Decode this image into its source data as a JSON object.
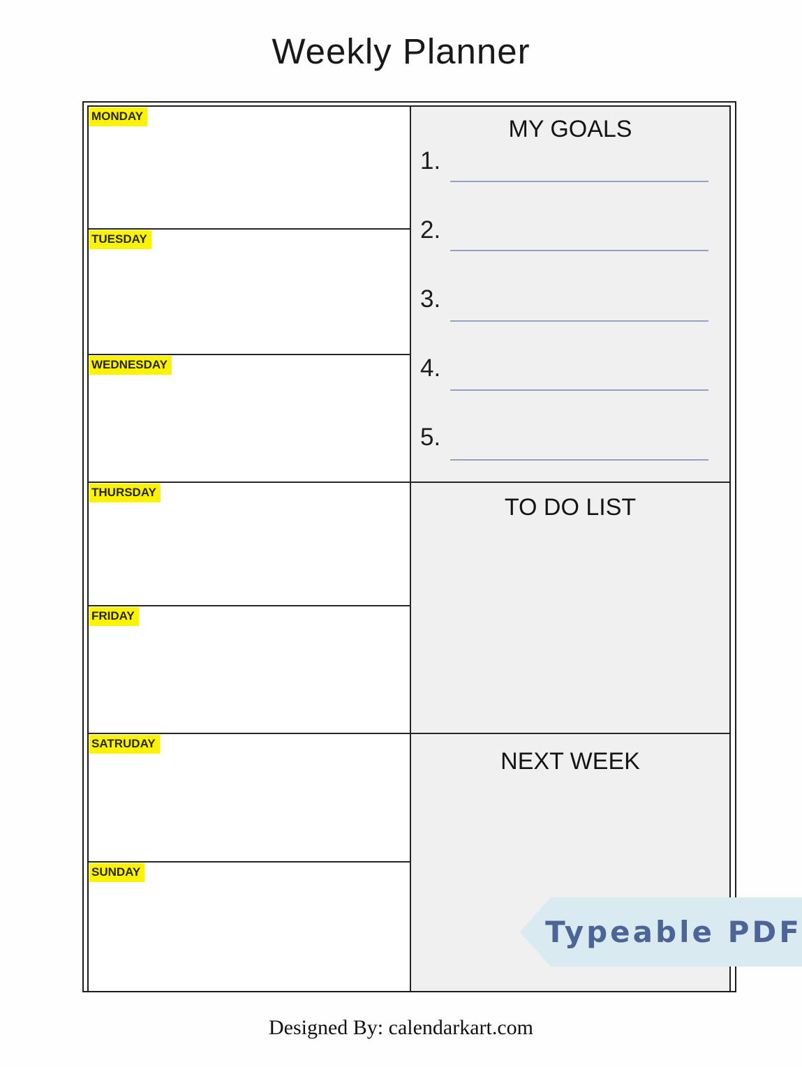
{
  "page": {
    "title": "Weekly Planner",
    "footer": "Designed By: calendarkart.com"
  },
  "planner": {
    "days": [
      {
        "label": "MONDAY"
      },
      {
        "label": "TUESDAY"
      },
      {
        "label": "WEDNESDAY"
      },
      {
        "label": "THURSDAY"
      },
      {
        "label": "FRIDAY"
      },
      {
        "label": "SATRUDAY"
      },
      {
        "label": "SUNDAY"
      }
    ],
    "sections": {
      "goals": {
        "title": "MY GOALS",
        "items": [
          "1.",
          "2.",
          "3.",
          "4.",
          "5."
        ]
      },
      "todo": {
        "title": "TO DO LIST"
      },
      "next_week": {
        "title": "NEXT WEEK"
      }
    }
  },
  "ribbon": {
    "label": "Typeable PDF"
  },
  "colors": {
    "day_highlight": "#fcf303",
    "section_background": "#f0f0f0",
    "goal_line": "#97a1bf",
    "table_border": "#1d1d1d",
    "ribbon_background": "#d9eaf0",
    "ribbon_text": "#4d6596"
  }
}
